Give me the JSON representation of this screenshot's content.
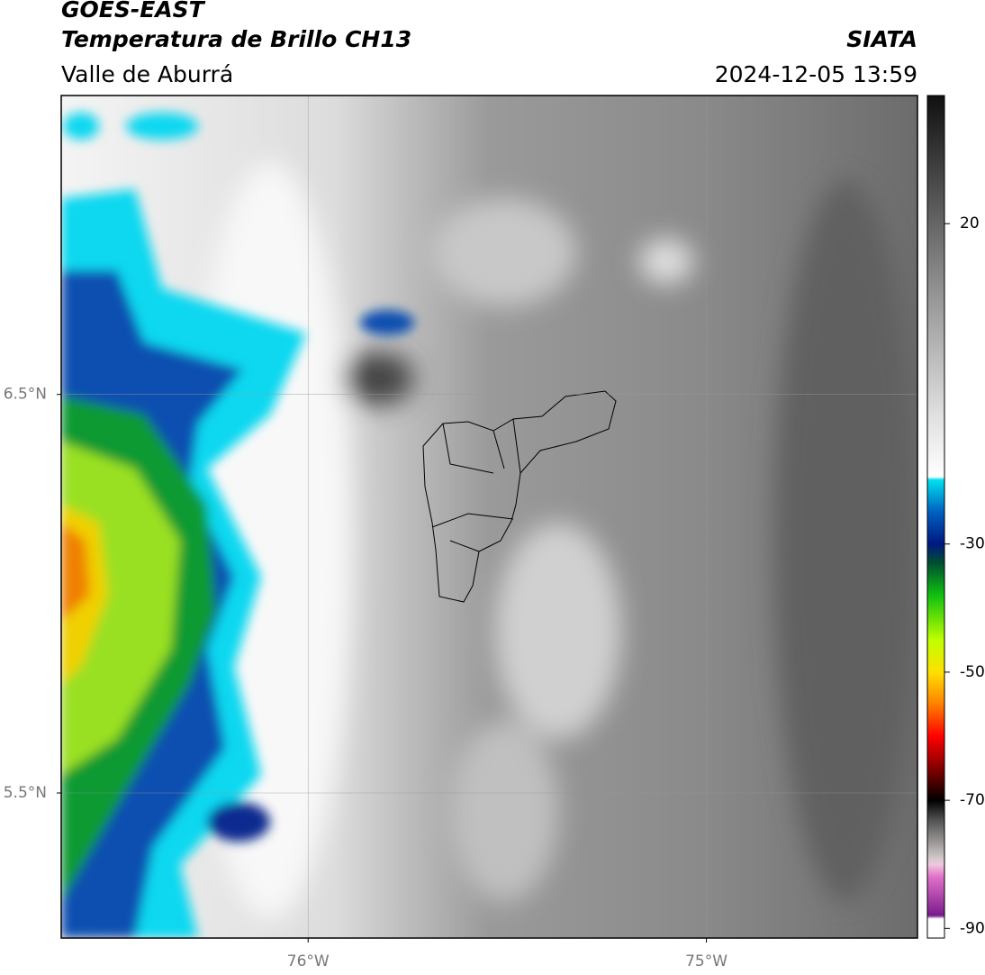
{
  "header": {
    "title": "GOES-EAST",
    "subtitle": "Temperatura de Brillo CH13",
    "region": "Valle de Aburrá",
    "source": "SIATA",
    "datetime": "2024-12-05 13:59"
  },
  "map": {
    "xlim": [
      -76.62,
      -74.47
    ],
    "ylim": [
      5.136,
      7.25
    ],
    "xticks": [
      {
        "value": -76,
        "label": "76°W"
      },
      {
        "value": -75,
        "label": "75°W"
      }
    ],
    "yticks": [
      {
        "value": 5.5,
        "label": "5.5°N"
      },
      {
        "value": 6.5,
        "label": "6.5°N"
      }
    ],
    "grid": true
  },
  "colorbar": {
    "lim": [
      -91.5,
      40
    ],
    "ticks": [
      -90,
      -70,
      -50,
      -30,
      20
    ],
    "stops": [
      {
        "value": -91.5,
        "color": "#ffffff"
      },
      {
        "value": -88.5,
        "color": "#ffffff"
      },
      {
        "value": -88,
        "color": "#7a1a8c"
      },
      {
        "value": -82,
        "color": "#e070c8"
      },
      {
        "value": -80,
        "color": "#f0c8e0"
      },
      {
        "value": -79,
        "color": "#d0c8c8"
      },
      {
        "value": -73,
        "color": "#505050"
      },
      {
        "value": -70,
        "color": "#000000"
      },
      {
        "value": -66,
        "color": "#6a0000"
      },
      {
        "value": -60,
        "color": "#ff0000"
      },
      {
        "value": -55,
        "color": "#ff8000"
      },
      {
        "value": -50,
        "color": "#ffe000"
      },
      {
        "value": -45,
        "color": "#c0ff00"
      },
      {
        "value": -38,
        "color": "#10c010"
      },
      {
        "value": -33,
        "color": "#005030"
      },
      {
        "value": -30,
        "color": "#001880"
      },
      {
        "value": -25,
        "color": "#0060c0"
      },
      {
        "value": -20,
        "color": "#00e0f0"
      },
      {
        "value": -19.5,
        "color": "#ffffff"
      },
      {
        "value": -10,
        "color": "#e0e0e0"
      },
      {
        "value": 10,
        "color": "#909090"
      },
      {
        "value": 25,
        "color": "#505050"
      },
      {
        "value": 40,
        "color": "#101010"
      }
    ]
  }
}
